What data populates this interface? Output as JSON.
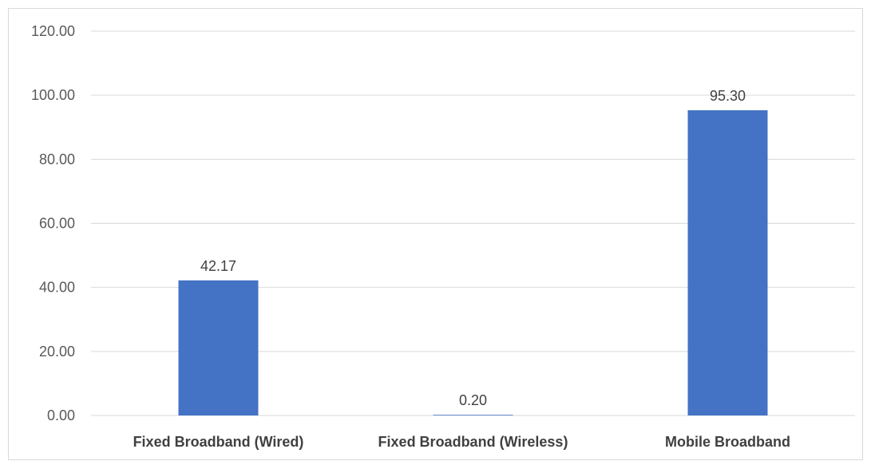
{
  "chart_data": {
    "type": "bar",
    "title": "",
    "xlabel": "",
    "ylabel": "",
    "categories": [
      "Fixed Broadband (Wired)",
      "Fixed Broadband (Wireless)",
      "Mobile Broadband"
    ],
    "values": [
      42.17,
      0.2,
      95.3
    ],
    "data_labels": [
      "42.17",
      "0.20",
      "95.30"
    ],
    "ylim": [
      0,
      120
    ],
    "yticks": [
      0,
      20,
      40,
      60,
      80,
      100,
      120
    ],
    "ytick_labels": [
      "0.00",
      "20.00",
      "40.00",
      "60.00",
      "80.00",
      "100.00",
      "120.00"
    ],
    "grid": true,
    "legend": "none",
    "bar_color": "#4472c4"
  }
}
